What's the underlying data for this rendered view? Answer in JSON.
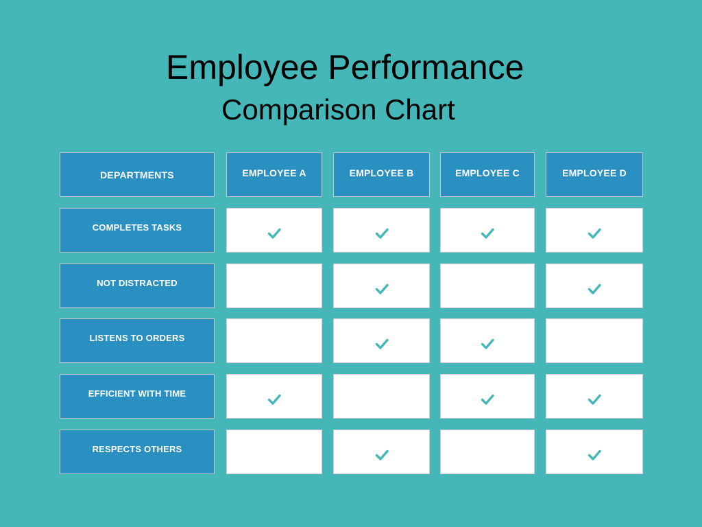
{
  "title": {
    "line1": "Employee Performance",
    "line2": "Comparison Chart"
  },
  "table": {
    "corner_label": "DEPARTMENTS",
    "columns": [
      "EMPLOYEE A",
      "EMPLOYEE B",
      "EMPLOYEE C",
      "EMPLOYEE D"
    ],
    "rows": [
      {
        "label": "COMPLETES TASKS",
        "checks": [
          true,
          true,
          true,
          true
        ]
      },
      {
        "label": "NOT DISTRACTED",
        "checks": [
          false,
          true,
          false,
          true
        ]
      },
      {
        "label": "LISTENS TO ORDERS",
        "checks": [
          false,
          true,
          true,
          false
        ]
      },
      {
        "label": "EFFICIENT WITH TIME",
        "checks": [
          true,
          false,
          true,
          true
        ]
      },
      {
        "label": "RESPECTS OTHERS",
        "checks": [
          false,
          true,
          false,
          true
        ]
      }
    ]
  },
  "colors": {
    "background": "#45b7b8",
    "header": "#2a90c2",
    "cell": "#ffffff",
    "check": "#45b7b8"
  },
  "icons": {
    "check": "check-icon"
  }
}
